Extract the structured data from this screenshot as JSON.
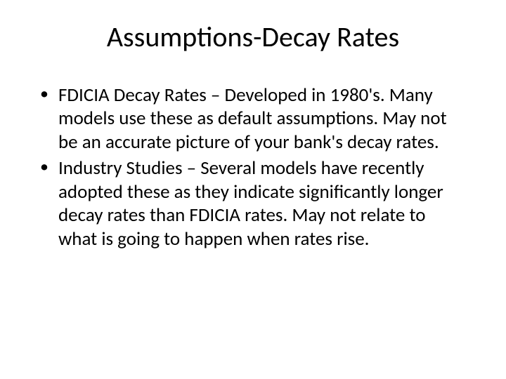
{
  "slide": {
    "title": "Assumptions-Decay Rates",
    "bullets": [
      {
        "text": "FDICIA Decay Rates – Developed in 1980's. Many models use these as default assumptions. May not be an accurate picture of your bank's decay rates."
      },
      {
        "text": "Industry Studies – Several models have recently adopted these as they indicate significantly longer decay rates than FDICIA rates.  May not relate to what is going to happen when rates rise."
      }
    ]
  },
  "colors": {
    "background": "#ffffff",
    "text": "#000000"
  },
  "typography": {
    "title_fontsize": 40,
    "body_fontsize": 27,
    "font_family": "Calibri"
  }
}
